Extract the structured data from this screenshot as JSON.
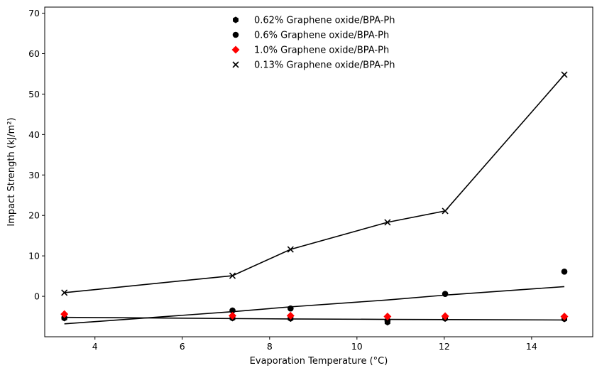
{
  "chart_data": {
    "type": "scatter",
    "title": "",
    "xlabel": "Evaporation Temperature (°C)",
    "ylabel": "Impact Strength (kJ/m²)",
    "xlim": [
      2.85,
      15.4
    ],
    "ylim": [
      -10,
      71.5
    ],
    "xticks": [
      4,
      6,
      8,
      10,
      12,
      14
    ],
    "yticks": [
      0,
      10,
      20,
      30,
      40,
      50,
      60,
      70
    ],
    "grid": false,
    "legend_position": "top-center",
    "x": [
      3.3,
      7.15,
      8.48,
      10.7,
      12.02,
      14.75
    ],
    "series": [
      {
        "name": "0.62% Graphene oxide/BPA-Ph",
        "marker": "hexagon",
        "color": "#000000",
        "values": [
          -5.4,
          -5.4,
          -5.5,
          -6.4,
          -5.5,
          -5.6
        ],
        "fit": [
          -5.2,
          -5.5,
          -5.6,
          -5.7,
          -5.75,
          -5.85
        ]
      },
      {
        "name": "0.6% Graphene oxide/BPA-Ph",
        "marker": "circle",
        "color": "#000000",
        "values": [
          -5.3,
          -3.5,
          -3.0,
          -6.0,
          0.6,
          6.1
        ],
        "fit": [
          -6.8,
          -3.8,
          -2.6,
          -0.9,
          0.3,
          2.4
        ]
      },
      {
        "name": "1.0% Graphene oxide/BPA-Ph",
        "marker": "diamond",
        "color": "#ff0000",
        "values": [
          -4.4,
          -4.8,
          -4.8,
          -5.0,
          -4.9,
          -5.0
        ]
      },
      {
        "name": "0.13% Graphene oxide/BPA-Ph",
        "marker": "x",
        "color": "#000000",
        "values": [
          0.9,
          5.1,
          11.6,
          18.3,
          21.1,
          54.8
        ],
        "connect": true
      }
    ]
  }
}
